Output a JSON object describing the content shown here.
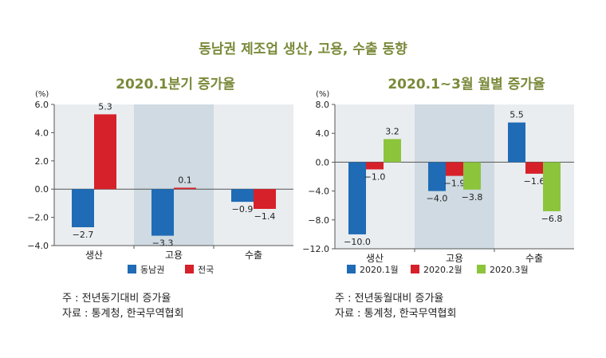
{
  "main_title": "동남권 제조업 생산, 고용, 수출 동향",
  "notes_left": [
    "주 : 전년동기대비 증가율",
    "자료 : 통계청, 한국무역협회"
  ],
  "notes_right": [
    "주 : 전년동월대비 증가율",
    "자료 : 통계청, 한국무역협회"
  ],
  "chart_data": [
    {
      "type": "bar",
      "title": "2020.1분기 증가율",
      "unit": "(%)",
      "categories": [
        "생산",
        "고용",
        "수출"
      ],
      "ylim": [
        -4.0,
        6.0
      ],
      "yticks": [
        6.0,
        4.0,
        2.0,
        0.0,
        -2.0,
        -4.0
      ],
      "highlight_category": 1,
      "series": [
        {
          "name": "동남권",
          "color": "#1f6bb5",
          "values": [
            -2.7,
            -3.3,
            -0.9
          ]
        },
        {
          "name": "전국",
          "color": "#d6202a",
          "values": [
            5.3,
            0.1,
            -1.4
          ]
        }
      ],
      "legend": "bottom"
    },
    {
      "type": "bar",
      "title": "2020.1~3월 월별 증가율",
      "unit": "(%)",
      "categories": [
        "생산",
        "고용",
        "수출"
      ],
      "ylim": [
        -12.0,
        8.0
      ],
      "yticks": [
        8.0,
        4.0,
        0.0,
        -4.0,
        -8.0,
        -12.0
      ],
      "highlight_category": 1,
      "series": [
        {
          "name": "2020.1월",
          "color": "#1f6bb5",
          "values": [
            -10.0,
            -4.0,
            5.5
          ]
        },
        {
          "name": "2020.2월",
          "color": "#d6202a",
          "values": [
            -1.0,
            -1.9,
            -1.6
          ]
        },
        {
          "name": "2020.3월",
          "color": "#8cc43c",
          "values": [
            3.2,
            -3.8,
            -6.8
          ]
        }
      ],
      "legend": "bottom"
    }
  ]
}
